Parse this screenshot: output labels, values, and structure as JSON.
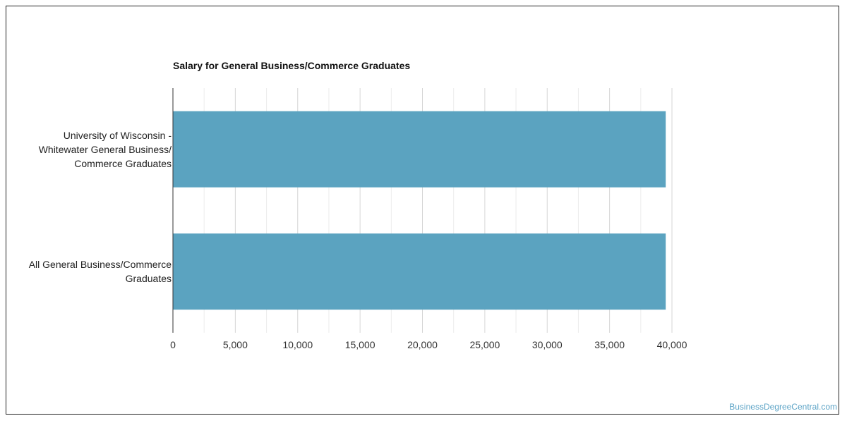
{
  "chart_data": {
    "type": "bar",
    "orientation": "horizontal",
    "title": "Salary for General Business/Commerce Graduates",
    "categories": [
      "University of Wisconsin - Whitewater General Business/ Commerce Graduates",
      "All General Business/Commerce Graduates"
    ],
    "category_lines": [
      [
        "University of Wisconsin -",
        "Whitewater General Business/",
        "Commerce Graduates"
      ],
      [
        "All General Business/Commerce",
        "Graduates"
      ]
    ],
    "values": [
      39500,
      39500
    ],
    "xlim": [
      0,
      40000
    ],
    "xticks": [
      0,
      5000,
      10000,
      15000,
      20000,
      25000,
      30000,
      35000,
      40000
    ],
    "xtick_labels": [
      "0",
      "5,000",
      "10,000",
      "15,000",
      "20,000",
      "25,000",
      "30,000",
      "35,000",
      "40,000"
    ],
    "xlabel": "",
    "ylabel": "",
    "grid": true,
    "bar_color": "#5ba3c0",
    "grid_color": "#e0e0e0"
  },
  "watermark": "BusinessDegreeCentral.com"
}
